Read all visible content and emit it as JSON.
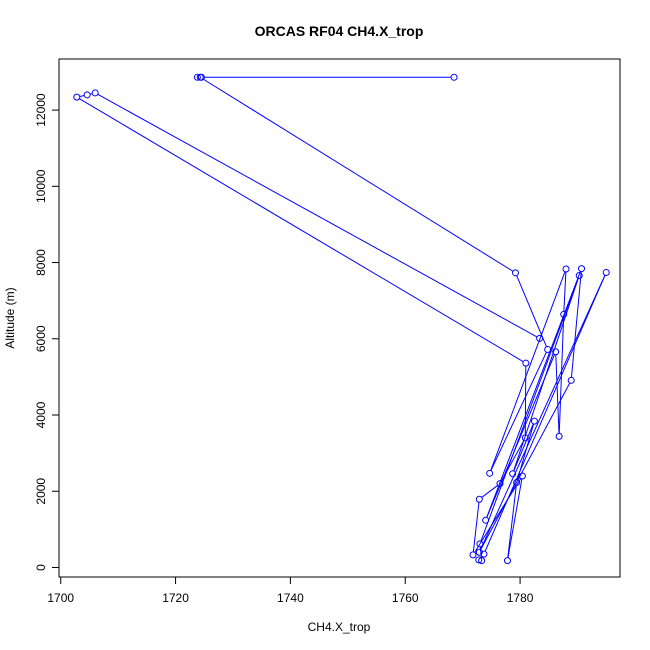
{
  "chart_data": {
    "type": "line",
    "title": "ORCAS RF04 CH4.X_trop",
    "xlabel": "CH4.X_trop",
    "ylabel": "Altitude (m)",
    "xlim": [
      1699.7,
      1797.4
    ],
    "ylim": [
      -250,
      13340
    ],
    "x_ticks": [
      1700,
      1720,
      1740,
      1760,
      1780
    ],
    "y_ticks": [
      0,
      2000,
      4000,
      6000,
      8000,
      10000,
      12000
    ],
    "x_tick_labels": [
      "1700",
      "1720",
      "1740",
      "1760",
      "1780"
    ],
    "y_tick_labels": [
      "0",
      "2000",
      "4000",
      "6000",
      "8000",
      "10000",
      "12000"
    ],
    "grid": false,
    "marker": "open-circle",
    "series_color": "#0000ff",
    "series": [
      {
        "points": [
          {
            "x": 1768.5,
            "y": 12860
          },
          {
            "x": 1724.5,
            "y": 12860
          },
          {
            "x": 1723.8,
            "y": 12860
          },
          {
            "x": 1724.3,
            "y": 12860
          },
          {
            "x": 1779.2,
            "y": 7730
          },
          {
            "x": 1784.8,
            "y": 5720
          },
          {
            "x": 1774.7,
            "y": 2470
          },
          {
            "x": 1788.0,
            "y": 7830
          },
          {
            "x": 1787.6,
            "y": 6640
          },
          {
            "x": 1786.8,
            "y": 3440
          },
          {
            "x": 1786.2,
            "y": 5660
          },
          {
            "x": 1774.0,
            "y": 1240
          },
          {
            "x": 1790.7,
            "y": 7840
          },
          {
            "x": 1788.9,
            "y": 4910
          },
          {
            "x": 1772.9,
            "y": 400
          },
          {
            "x": 1795.0,
            "y": 7740
          },
          {
            "x": 1773.7,
            "y": 350
          },
          {
            "x": 1772.8,
            "y": 200
          },
          {
            "x": 1773.3,
            "y": 180
          },
          {
            "x": 1773.0,
            "y": 620
          },
          {
            "x": 1790.3,
            "y": 7660
          },
          {
            "x": 1778.7,
            "y": 2460
          },
          {
            "x": 1782.5,
            "y": 3840
          },
          {
            "x": 1779.4,
            "y": 2230
          },
          {
            "x": 1777.8,
            "y": 180
          },
          {
            "x": 1780.4,
            "y": 2400
          },
          {
            "x": 1771.8,
            "y": 330
          },
          {
            "x": 1772.9,
            "y": 1790
          },
          {
            "x": 1776.5,
            "y": 2200
          },
          {
            "x": 1780.9,
            "y": 3400
          },
          {
            "x": 1781.0,
            "y": 5360
          },
          {
            "x": 1702.8,
            "y": 12340
          },
          {
            "x": 1704.6,
            "y": 12400
          },
          {
            "x": 1706.0,
            "y": 12450
          },
          {
            "x": 1783.4,
            "y": 6010
          }
        ]
      }
    ]
  }
}
